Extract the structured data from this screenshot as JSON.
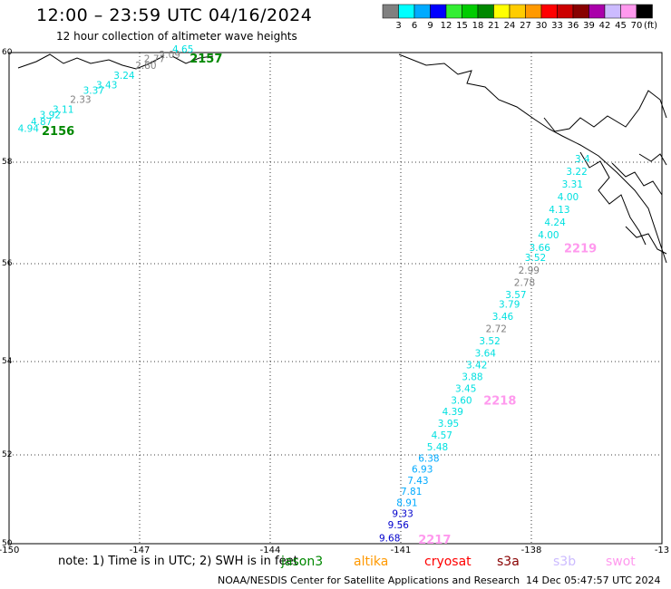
{
  "header": {
    "title": "12:00 – 23:59 UTC 04/16/2024",
    "subtitle": "12 hour collection of altimeter wave heights"
  },
  "legend": {
    "unit": "(ft)",
    "bins": [
      {
        "label": "3",
        "color": "#808080"
      },
      {
        "label": "6",
        "color": "#00ffff"
      },
      {
        "label": "9",
        "color": "#00aaff"
      },
      {
        "label": "12",
        "color": "#0000ff"
      },
      {
        "label": "15",
        "color": "#33ee33"
      },
      {
        "label": "18",
        "color": "#00cc00"
      },
      {
        "label": "21",
        "color": "#008800"
      },
      {
        "label": "24",
        "color": "#ffff00"
      },
      {
        "label": "27",
        "color": "#ffcc00"
      },
      {
        "label": "30",
        "color": "#ff9900"
      },
      {
        "label": "33",
        "color": "#ff0000"
      },
      {
        "label": "36",
        "color": "#cc0000"
      },
      {
        "label": "39",
        "color": "#880000"
      },
      {
        "label": "42",
        "color": "#aa00aa"
      },
      {
        "label": "45",
        "color": "#ccbbff"
      },
      {
        "label": "70",
        "color": "#ff99ee"
      },
      {
        "label": "",
        "color": "#000000"
      }
    ]
  },
  "map": {
    "lon_range": [
      -150,
      -135
    ],
    "lat_range": [
      50,
      60
    ],
    "x_ticks": [
      "-150",
      "-147",
      "-144",
      "-141",
      "-138",
      "-13"
    ],
    "y_ticks": [
      "60",
      "58",
      "56",
      "54",
      "52",
      "50"
    ],
    "track_2156_label": "2156",
    "track_2157_label": "2157",
    "track_2217_label": "2217",
    "track_2218_label": "2218",
    "track_2219_label": "2219",
    "track_west": [
      {
        "v": "4.94",
        "lon": -149.8,
        "lat": 58.55,
        "c": "#00e0e0"
      },
      {
        "v": "4.87",
        "lon": -149.5,
        "lat": 58.68,
        "c": "#00e0e0"
      },
      {
        "v": "3.92",
        "lon": -149.3,
        "lat": 58.8,
        "c": "#00e0e0"
      },
      {
        "v": "3.11",
        "lon": -149.0,
        "lat": 58.9,
        "c": "#00e0e0"
      },
      {
        "v": "2.33",
        "lon": -148.6,
        "lat": 59.08,
        "c": "#808080"
      },
      {
        "v": "3.37",
        "lon": -148.3,
        "lat": 59.25,
        "c": "#00e0e0"
      },
      {
        "v": "3.43",
        "lon": -148.0,
        "lat": 59.35,
        "c": "#00e0e0"
      },
      {
        "v": "3.24",
        "lon": -147.6,
        "lat": 59.52,
        "c": "#00e0e0"
      },
      {
        "v": "2.80",
        "lon": -147.1,
        "lat": 59.7,
        "c": "#808080"
      },
      {
        "v": "2.77",
        "lon": -146.9,
        "lat": 59.83,
        "c": "#808080"
      },
      {
        "v": "2.09",
        "lon": -146.55,
        "lat": 59.9,
        "c": "#808080"
      },
      {
        "v": "4.65",
        "lon": -146.25,
        "lat": 60.0,
        "c": "#00e0e0"
      }
    ],
    "track_east": [
      {
        "v": "9.68",
        "lon": -141.5,
        "lat": 50.05,
        "c": "#0000cc"
      },
      {
        "v": "9.56",
        "lon": -141.3,
        "lat": 50.35,
        "c": "#0000cc"
      },
      {
        "v": "9.33",
        "lon": -141.2,
        "lat": 50.6,
        "c": "#0000cc"
      },
      {
        "v": "8.91",
        "lon": -141.1,
        "lat": 50.85,
        "c": "#00aaff"
      },
      {
        "v": "7.81",
        "lon": -141.0,
        "lat": 51.1,
        "c": "#00aaff"
      },
      {
        "v": "7.43",
        "lon": -140.85,
        "lat": 51.35,
        "c": "#00aaff"
      },
      {
        "v": "6.93",
        "lon": -140.75,
        "lat": 51.6,
        "c": "#00aaff"
      },
      {
        "v": "6.38",
        "lon": -140.6,
        "lat": 51.85,
        "c": "#00aaff"
      },
      {
        "v": "5.48",
        "lon": -140.4,
        "lat": 52.1,
        "c": "#00e0e0"
      },
      {
        "v": "4.57",
        "lon": -140.3,
        "lat": 52.35,
        "c": "#00e0e0"
      },
      {
        "v": "3.95",
        "lon": -140.15,
        "lat": 52.6,
        "c": "#00e0e0"
      },
      {
        "v": "4.39",
        "lon": -140.05,
        "lat": 52.85,
        "c": "#00e0e0"
      },
      {
        "v": "3.60",
        "lon": -139.85,
        "lat": 53.1,
        "c": "#00e0e0"
      },
      {
        "v": "3.45",
        "lon": -139.75,
        "lat": 53.35,
        "c": "#00e0e0"
      },
      {
        "v": "3.88",
        "lon": -139.6,
        "lat": 53.6,
        "c": "#00e0e0"
      },
      {
        "v": "3.42",
        "lon": -139.5,
        "lat": 53.85,
        "c": "#00e0e0"
      },
      {
        "v": "3.64",
        "lon": -139.3,
        "lat": 54.1,
        "c": "#00e0e0"
      },
      {
        "v": "3.52",
        "lon": -139.2,
        "lat": 54.35,
        "c": "#00e0e0"
      },
      {
        "v": "2.72",
        "lon": -139.05,
        "lat": 54.6,
        "c": "#808080"
      },
      {
        "v": "3.46",
        "lon": -138.9,
        "lat": 54.85,
        "c": "#00e0e0"
      },
      {
        "v": "3.79",
        "lon": -138.75,
        "lat": 55.1,
        "c": "#00e0e0"
      },
      {
        "v": "3.57",
        "lon": -138.6,
        "lat": 55.3,
        "c": "#00e0e0"
      },
      {
        "v": "2.78",
        "lon": -138.4,
        "lat": 55.55,
        "c": "#808080"
      },
      {
        "v": "2.99",
        "lon": -138.3,
        "lat": 55.8,
        "c": "#808080"
      },
      {
        "v": "3.52",
        "lon": -138.15,
        "lat": 56.05,
        "c": "#00e0e0"
      },
      {
        "v": "3.66",
        "lon": -138.05,
        "lat": 56.25,
        "c": "#00e0e0"
      },
      {
        "v": "4.00",
        "lon": -137.85,
        "lat": 56.5,
        "c": "#00e0e0"
      },
      {
        "v": "4.24",
        "lon": -137.7,
        "lat": 56.75,
        "c": "#00e0e0"
      },
      {
        "v": "4.13",
        "lon": -137.6,
        "lat": 57.0,
        "c": "#00e0e0"
      },
      {
        "v": "4.00",
        "lon": -137.4,
        "lat": 57.25,
        "c": "#00e0e0"
      },
      {
        "v": "3.31",
        "lon": -137.3,
        "lat": 57.5,
        "c": "#00e0e0"
      },
      {
        "v": "3.22",
        "lon": -137.2,
        "lat": 57.75,
        "c": "#00e0e0"
      },
      {
        "v": "3.4",
        "lon": -137.0,
        "lat": 58.0,
        "c": "#00e0e0"
      }
    ]
  },
  "footer": {
    "note_prefix": "note: 1) Time is in UTC; 2) SWH is in feet",
    "satellites": [
      {
        "name": "jason3",
        "color": "#008800"
      },
      {
        "name": "altika",
        "color": "#ff9900"
      },
      {
        "name": "cryosat",
        "color": "#ff0000"
      },
      {
        "name": "s3a",
        "color": "#880000"
      },
      {
        "name": "s3b",
        "color": "#ccbbff"
      },
      {
        "name": "swot",
        "color": "#ff99ee"
      }
    ],
    "credit": "NOAA/NESDIS Center for Satellite Applications and Research",
    "timestamp": "14 Dec 05:47:57 UTC 2024"
  }
}
